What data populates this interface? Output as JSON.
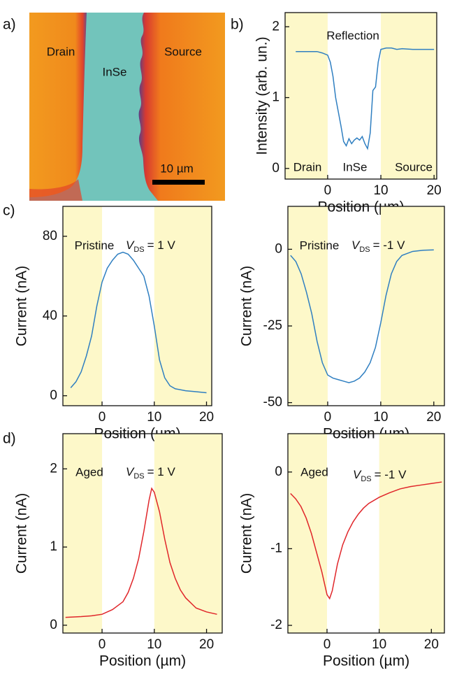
{
  "panel_labels": [
    "a)",
    "b)",
    "c)",
    "d)"
  ],
  "panel_a": {
    "labels": [
      "Drain",
      "InSe",
      "Source"
    ],
    "scale_bar": "10 µm"
  },
  "chart_data": [
    {
      "type": "line",
      "xlabel": "Position (µm)",
      "ylabel": "Intensity (arb. un.)",
      "xlim": [
        -8,
        20.5
      ],
      "ylim": [
        -0.15,
        2.2
      ],
      "xticks": [
        0,
        10,
        20
      ],
      "yticks": [
        0,
        1,
        2
      ],
      "shaded_bounds": [
        0,
        10
      ],
      "shade_color": "#fdf8c9",
      "color": "#2f7fc1",
      "annotations": [
        {
          "text": "Reflection",
          "color": "#111"
        },
        {
          "text": "Drain",
          "color": "#111"
        },
        {
          "text": "InSe",
          "color": "#111"
        },
        {
          "text": "Source",
          "color": "#111"
        }
      ],
      "x": [
        -6,
        -4,
        -2,
        -1,
        0,
        0.5,
        1,
        1.5,
        2,
        2.5,
        3,
        3.5,
        4,
        4.5,
        5,
        5.5,
        6,
        6.5,
        7,
        7.5,
        8,
        8.5,
        9,
        9.5,
        10,
        11,
        12,
        13,
        14,
        16,
        18,
        20
      ],
      "values": [
        1.65,
        1.65,
        1.65,
        1.63,
        1.6,
        1.5,
        1.3,
        1.0,
        0.8,
        0.6,
        0.38,
        0.32,
        0.42,
        0.35,
        0.4,
        0.43,
        0.4,
        0.45,
        0.35,
        0.28,
        0.5,
        1.1,
        1.15,
        1.5,
        1.68,
        1.7,
        1.7,
        1.68,
        1.69,
        1.68,
        1.68,
        1.68
      ]
    },
    {
      "type": "line",
      "xlabel": "Position (µm)",
      "ylabel": "Current (nA)",
      "xlim": [
        -7.5,
        21
      ],
      "ylim": [
        -5,
        95
      ],
      "xticks": [
        0,
        10,
        20
      ],
      "yticks": [
        0,
        40,
        80
      ],
      "shaded_bounds": [
        0,
        10
      ],
      "shade_color": "#fdf8c9",
      "color": "#2f7fc1",
      "annotations": [
        {
          "text": "Pristine",
          "color": "#2f7fc1"
        },
        {
          "symbol": "V",
          "subscript": "DS",
          "text": "= 1 V",
          "color": "#111"
        }
      ],
      "x": [
        -6,
        -5,
        -4,
        -3,
        -2,
        -1,
        0,
        1,
        2,
        3,
        4,
        5,
        6,
        7,
        8,
        9,
        10,
        11,
        12,
        13,
        14,
        16,
        18,
        20
      ],
      "values": [
        4,
        7,
        12,
        20,
        30,
        45,
        57,
        64,
        68,
        71,
        72,
        71,
        68,
        64,
        60,
        50,
        35,
        18,
        9,
        5,
        3.5,
        2.5,
        2,
        1.5
      ]
    },
    {
      "type": "line",
      "xlabel": "Position (µm)",
      "ylabel": "Current (nA)",
      "xlim": [
        -7.5,
        22
      ],
      "ylim": [
        -51,
        14
      ],
      "xticks": [
        0,
        10,
        20
      ],
      "yticks": [
        -50,
        -25,
        0
      ],
      "shaded_bounds": [
        0,
        10
      ],
      "shade_color": "#fdf8c9",
      "color": "#2f7fc1",
      "annotations": [
        {
          "text": "Pristine",
          "color": "#2f7fc1"
        },
        {
          "symbol": "V",
          "subscript": "DS",
          "text": "= -1 V",
          "color": "#111"
        }
      ],
      "x": [
        -7,
        -6,
        -5,
        -4,
        -3,
        -2,
        -1,
        0,
        1,
        2,
        3,
        4,
        5,
        6,
        7,
        8,
        9,
        10,
        11,
        12,
        13,
        14,
        16,
        18,
        20
      ],
      "values": [
        -2,
        -4,
        -8,
        -14,
        -21,
        -30,
        -37,
        -41,
        -42,
        -42.5,
        -43,
        -43.5,
        -43,
        -42,
        -40,
        -37,
        -32,
        -24,
        -15,
        -8,
        -4,
        -2,
        -0.7,
        -0.3,
        -0.2
      ]
    },
    {
      "type": "line",
      "xlabel": "Position (µm)",
      "ylabel": "Current (nA)",
      "xlim": [
        -7.5,
        23
      ],
      "ylim": [
        -0.1,
        2.45
      ],
      "xticks": [
        0,
        10,
        20
      ],
      "yticks": [
        0,
        1,
        2
      ],
      "shaded_bounds": [
        0,
        10
      ],
      "shade_color": "#fdf8c9",
      "color": "#e0262a",
      "annotations": [
        {
          "text": "Aged",
          "color": "#e0262a"
        },
        {
          "symbol": "V",
          "subscript": "DS",
          "text": "= 1 V",
          "color": "#111"
        }
      ],
      "x": [
        -7,
        -4,
        -2,
        0,
        2,
        4,
        5,
        6,
        7,
        8,
        9,
        9.5,
        10,
        11,
        12,
        13,
        14,
        15,
        16,
        18,
        20,
        22
      ],
      "values": [
        0.1,
        0.11,
        0.12,
        0.14,
        0.2,
        0.3,
        0.42,
        0.6,
        0.85,
        1.2,
        1.6,
        1.75,
        1.7,
        1.45,
        1.1,
        0.8,
        0.6,
        0.45,
        0.35,
        0.22,
        0.17,
        0.14
      ]
    },
    {
      "type": "line",
      "xlabel": "Position (µm)",
      "ylabel": "Current (nA)",
      "xlim": [
        -7.5,
        22.5
      ],
      "ylim": [
        -2.1,
        0.5
      ],
      "xticks": [
        0,
        10,
        20
      ],
      "yticks": [
        -2,
        -1,
        0
      ],
      "shaded_bounds": [
        0,
        10
      ],
      "shade_color": "#fdf8c9",
      "color": "#e0262a",
      "annotations": [
        {
          "text": "Aged",
          "color": "#e0262a"
        },
        {
          "symbol": "V",
          "subscript": "DS",
          "text": "= -1 V",
          "color": "#111"
        }
      ],
      "x": [
        -7,
        -6,
        -5,
        -4,
        -3,
        -2,
        -1,
        0,
        0.5,
        1,
        2,
        3,
        4,
        5,
        6,
        7,
        8,
        10,
        12,
        14,
        16,
        18,
        20,
        22
      ],
      "values": [
        -0.28,
        -0.35,
        -0.45,
        -0.6,
        -0.8,
        -1.05,
        -1.3,
        -1.6,
        -1.65,
        -1.55,
        -1.2,
        -0.95,
        -0.78,
        -0.65,
        -0.55,
        -0.47,
        -0.41,
        -0.33,
        -0.27,
        -0.22,
        -0.19,
        -0.17,
        -0.15,
        -0.13
      ]
    }
  ]
}
